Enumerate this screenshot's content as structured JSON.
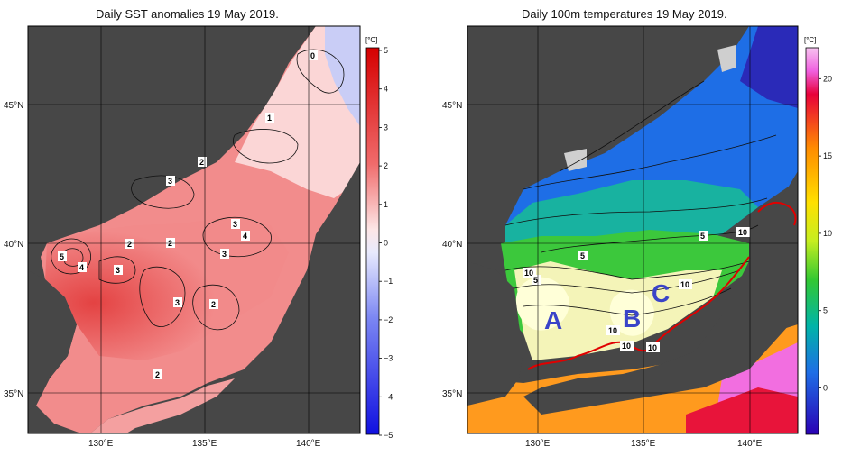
{
  "left_panel": {
    "title": "Daily SST anomalies 19 May 2019.",
    "unit": "[°C]",
    "colorbar_ticks": [
      "5",
      "4",
      "3",
      "2",
      "1",
      "0",
      "−1",
      "−2",
      "−3",
      "−4",
      "−5"
    ],
    "contour_labels": [
      "0",
      "1",
      "2",
      "2",
      "2",
      "3",
      "3",
      "3",
      "3",
      "4",
      "4",
      "5",
      "3",
      "2",
      "2",
      "2",
      "3"
    ]
  },
  "right_panel": {
    "title": "Daily 100m temperatures 19 May 2019.",
    "unit": "[°C]",
    "colorbar_ticks": [
      "20",
      "15",
      "10",
      "5",
      "0"
    ],
    "contour_labels": [
      "5",
      "5",
      "10",
      "5",
      "10",
      "10",
      "10",
      "10",
      "10"
    ],
    "region_labels": [
      "A",
      "B",
      "C"
    ]
  },
  "axes": {
    "lat_labels": [
      "45°N",
      "40°N",
      "35°N"
    ],
    "lon_labels": [
      "130°E",
      "135°E",
      "140°E"
    ]
  },
  "colors": {
    "land": "#474747",
    "anomaly_warm": "#ef5350",
    "front_line": "#e00000",
    "label_letters": "#3a44c8"
  }
}
